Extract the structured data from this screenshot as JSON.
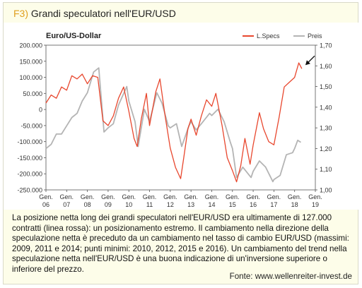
{
  "figure": {
    "tag": "F3)",
    "title": "Grandi speculatori nell'EUR/USD",
    "caption": "La posizione netta long dei grandi speculatori nell'EUR/USD era ultimamente di 127.000 contratti (linea rossa): un posizionamento estremo. Il cambiamento nella direzione della speculazione netta è preceduto da un cambiamento nel tasso di cambio EUR/USD (massimi: 2009, 2011 e 2014; punti minimi: 2010, 2012, 2015 e 2016). Un cambiamento del trend nella speculazione netta nell'EUR/USD è una buona indicazione di un'inversione superiore o inferiore del prezzo.",
    "source": "Fonte: www.wellenreiter-invest.de"
  },
  "colors": {
    "specs": "#e8472e",
    "price": "#b4b4b4",
    "axis": "#555555"
  },
  "chart_data": {
    "type": "line",
    "title": "Euro/US-Dollar",
    "x_ticks": [
      {
        "top": "Gen.",
        "bottom": "06",
        "x": 2006
      },
      {
        "top": "Gen.",
        "bottom": "07",
        "x": 2007
      },
      {
        "top": "Gen.",
        "bottom": "08",
        "x": 2008
      },
      {
        "top": "Gen.",
        "bottom": "09",
        "x": 2009
      },
      {
        "top": "Gen.",
        "bottom": "10",
        "x": 2010
      },
      {
        "top": "Gen.",
        "bottom": "11",
        "x": 2011
      },
      {
        "top": "Gen.",
        "bottom": "12",
        "x": 2012
      },
      {
        "top": "Gen.",
        "bottom": "13",
        "x": 2013
      },
      {
        "top": "Gen.",
        "bottom": "14",
        "x": 2014
      },
      {
        "top": "Gen.",
        "bottom": "15",
        "x": 2015
      },
      {
        "top": "Gen.",
        "bottom": "16",
        "x": 2016
      },
      {
        "top": "Gen.",
        "bottom": "17",
        "x": 2017
      },
      {
        "top": "Gen.",
        "bottom": "18",
        "x": 2018
      },
      {
        "top": "Gen.",
        "bottom": "19",
        "x": 2019
      }
    ],
    "xlim": [
      2006,
      2019
    ],
    "y_left_ticks": [
      "200.000",
      "150.000",
      "100.000",
      "50.000",
      "0",
      "-50.000",
      "-100.000",
      "-150.000",
      "-200.000",
      "-250.000"
    ],
    "y_left_lim": [
      -250000,
      200000
    ],
    "y_right_ticks": [
      "1,70",
      "1,60",
      "1,50",
      "1,40",
      "1,30",
      "1,20",
      "1,10",
      "1,00"
    ],
    "y_right_lim": [
      1.0,
      1.7
    ],
    "legend_position": "top-right",
    "annotation": "arrow pointing at latest net position",
    "series": [
      {
        "name": "L.Specs",
        "color": "#e8472e",
        "axis": "left",
        "points": [
          [
            2006.0,
            20000
          ],
          [
            2006.25,
            45000
          ],
          [
            2006.5,
            35000
          ],
          [
            2006.75,
            70000
          ],
          [
            2007.0,
            60000
          ],
          [
            2007.25,
            105000
          ],
          [
            2007.5,
            95000
          ],
          [
            2007.75,
            110000
          ],
          [
            2008.0,
            80000
          ],
          [
            2008.25,
            105000
          ],
          [
            2008.5,
            100000
          ],
          [
            2008.75,
            -35000
          ],
          [
            2009.0,
            -50000
          ],
          [
            2009.25,
            -20000
          ],
          [
            2009.5,
            35000
          ],
          [
            2009.75,
            70000
          ],
          [
            2010.0,
            -5000
          ],
          [
            2010.25,
            -90000
          ],
          [
            2010.4,
            -115000
          ],
          [
            2010.6,
            -30000
          ],
          [
            2010.85,
            50000
          ],
          [
            2011.0,
            -50000
          ],
          [
            2011.3,
            55000
          ],
          [
            2011.5,
            95000
          ],
          [
            2011.75,
            -20000
          ],
          [
            2012.0,
            -120000
          ],
          [
            2012.25,
            -180000
          ],
          [
            2012.5,
            -215000
          ],
          [
            2012.65,
            -150000
          ],
          [
            2012.85,
            -60000
          ],
          [
            2013.0,
            -30000
          ],
          [
            2013.25,
            -80000
          ],
          [
            2013.5,
            -20000
          ],
          [
            2013.75,
            30000
          ],
          [
            2014.0,
            10000
          ],
          [
            2014.2,
            50000
          ],
          [
            2014.5,
            -50000
          ],
          [
            2014.75,
            -150000
          ],
          [
            2015.0,
            -190000
          ],
          [
            2015.2,
            -225000
          ],
          [
            2015.4,
            -175000
          ],
          [
            2015.6,
            -90000
          ],
          [
            2015.85,
            -170000
          ],
          [
            2016.0,
            -110000
          ],
          [
            2016.3,
            -10000
          ],
          [
            2016.5,
            -60000
          ],
          [
            2016.75,
            -100000
          ],
          [
            2017.0,
            -110000
          ],
          [
            2017.25,
            -25000
          ],
          [
            2017.5,
            70000
          ],
          [
            2017.75,
            85000
          ],
          [
            2018.0,
            100000
          ],
          [
            2018.2,
            145000
          ],
          [
            2018.35,
            127000
          ]
        ]
      },
      {
        "name": "Preis",
        "color": "#b4b4b4",
        "axis": "right",
        "points": [
          [
            2006.0,
            1.2
          ],
          [
            2006.25,
            1.22
          ],
          [
            2006.5,
            1.27
          ],
          [
            2006.75,
            1.27
          ],
          [
            2007.0,
            1.31
          ],
          [
            2007.25,
            1.35
          ],
          [
            2007.5,
            1.37
          ],
          [
            2007.75,
            1.43
          ],
          [
            2008.0,
            1.47
          ],
          [
            2008.3,
            1.57
          ],
          [
            2008.55,
            1.59
          ],
          [
            2008.8,
            1.28
          ],
          [
            2009.0,
            1.3
          ],
          [
            2009.25,
            1.32
          ],
          [
            2009.5,
            1.41
          ],
          [
            2009.9,
            1.5
          ],
          [
            2010.0,
            1.43
          ],
          [
            2010.3,
            1.33
          ],
          [
            2010.45,
            1.21
          ],
          [
            2010.75,
            1.39
          ],
          [
            2011.0,
            1.33
          ],
          [
            2011.35,
            1.47
          ],
          [
            2011.6,
            1.42
          ],
          [
            2011.9,
            1.31
          ],
          [
            2012.0,
            1.3
          ],
          [
            2012.3,
            1.32
          ],
          [
            2012.55,
            1.21
          ],
          [
            2012.9,
            1.31
          ],
          [
            2013.0,
            1.33
          ],
          [
            2013.25,
            1.29
          ],
          [
            2013.5,
            1.32
          ],
          [
            2013.9,
            1.37
          ],
          [
            2014.0,
            1.36
          ],
          [
            2014.3,
            1.39
          ],
          [
            2014.6,
            1.33
          ],
          [
            2014.9,
            1.23
          ],
          [
            2015.0,
            1.2
          ],
          [
            2015.2,
            1.06
          ],
          [
            2015.5,
            1.11
          ],
          [
            2015.9,
            1.06
          ],
          [
            2016.0,
            1.09
          ],
          [
            2016.3,
            1.14
          ],
          [
            2016.6,
            1.11
          ],
          [
            2016.95,
            1.04
          ],
          [
            2017.0,
            1.05
          ],
          [
            2017.3,
            1.07
          ],
          [
            2017.6,
            1.17
          ],
          [
            2017.9,
            1.18
          ],
          [
            2018.0,
            1.2
          ],
          [
            2018.15,
            1.24
          ],
          [
            2018.3,
            1.23
          ]
        ]
      }
    ]
  }
}
